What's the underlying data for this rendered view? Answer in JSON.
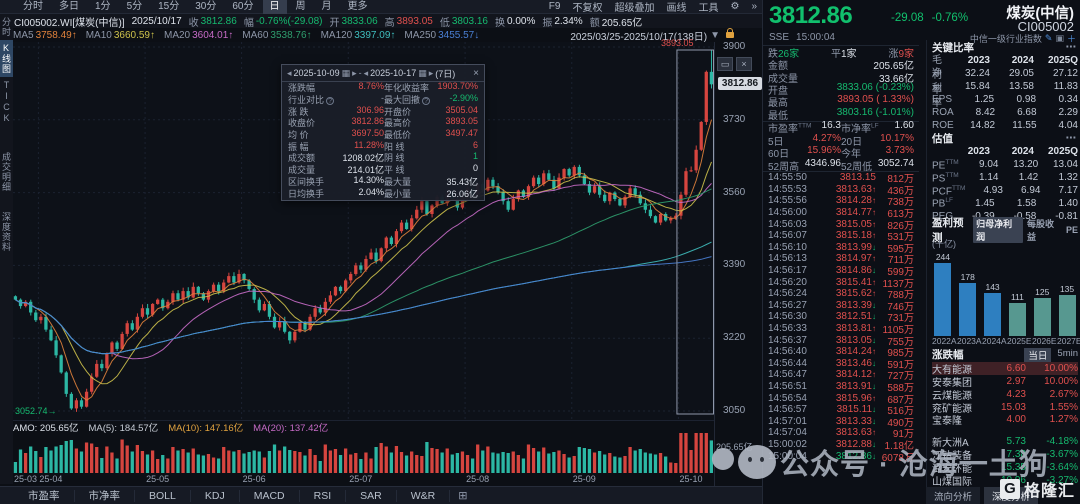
{
  "toolbar": {
    "tabs": [
      "分时",
      "多日",
      "1分",
      "5分",
      "15分",
      "30分",
      "60分",
      "日",
      "周",
      "月",
      "更多"
    ],
    "selected_tab": "日",
    "tools": [
      "F9",
      "不复权",
      "超级叠加",
      "画线",
      "工具"
    ],
    "gear_icon": "⚙",
    "more_icon": "»"
  },
  "info_bar": {
    "code_name": "CI005002.WI[煤炭(中信)]",
    "date": "2025/10/17",
    "fields": [
      {
        "label": "收",
        "value": "3812.86",
        "tone": "green"
      },
      {
        "label": "幅",
        "value": "-0.76%(-29.08)",
        "tone": "green"
      },
      {
        "label": "开",
        "value": "3833.06",
        "tone": "green"
      },
      {
        "label": "高",
        "value": "3893.05",
        "tone": "red"
      },
      {
        "label": "低",
        "value": "3803.16",
        "tone": "green"
      },
      {
        "label": "换",
        "value": "0.00%",
        "tone": "white"
      },
      {
        "label": "振",
        "value": "2.34%",
        "tone": "white"
      },
      {
        "label": "额",
        "value": "205.65亿",
        "tone": "white"
      }
    ]
  },
  "ma_bar": {
    "items": [
      {
        "label": "MA5",
        "value": "3758.49",
        "arrow": "↑",
        "color": "#e0823c"
      },
      {
        "label": "MA10",
        "value": "3660.59",
        "arrow": "↑",
        "color": "#cdc14b"
      },
      {
        "label": "MA20",
        "value": "3604.01",
        "arrow": "↑",
        "color": "#c66bc6"
      },
      {
        "label": "MA60",
        "value": "3538.76",
        "arrow": "↑",
        "color": "#2f9e6e"
      },
      {
        "label": "MA120",
        "value": "3397.09",
        "arrow": "↑",
        "color": "#3fbdbd"
      },
      {
        "label": "MA250",
        "value": "3455.57",
        "arrow": "↓",
        "color": "#4a7fd4"
      }
    ],
    "range": "2025/03/25-2025/10/17(138日)",
    "range_caret": "▼"
  },
  "sidebar": {
    "items": [
      {
        "label": "分时",
        "selected": false
      },
      {
        "label": "K线图",
        "selected": true
      },
      {
        "label": "TICK",
        "selected": false
      },
      {
        "label": "成交明细",
        "selected": false
      },
      {
        "label": "深度资料",
        "selected": false
      }
    ]
  },
  "chart": {
    "y_max": 3900,
    "y_min": 3050,
    "y_labels": [
      3900,
      3730,
      3560,
      3390,
      3220,
      3050
    ],
    "last_price_badge": "3812.86",
    "high_label": "3893.05",
    "low_label": "3052.74→",
    "sel_start": 131,
    "month_marks": [
      {
        "label": "25-03",
        "i": 0
      },
      {
        "label": "25-04",
        "i": 5
      },
      {
        "label": "25-05",
        "i": 26
      },
      {
        "label": "25-06",
        "i": 45
      },
      {
        "label": "25-07",
        "i": 66
      },
      {
        "label": "25-08",
        "i": 89
      },
      {
        "label": "25-09",
        "i": 110
      },
      {
        "label": "25-10",
        "i": 131
      }
    ],
    "closes": [
      3310,
      3295,
      3305,
      3280,
      3262,
      3270,
      3240,
      3215,
      3180,
      3140,
      3090,
      3056,
      3075,
      3060,
      3095,
      3130,
      3160,
      3150,
      3185,
      3210,
      3195,
      3230,
      3255,
      3240,
      3270,
      3290,
      3275,
      3300,
      3310,
      3290,
      3305,
      3325,
      3310,
      3330,
      3315,
      3340,
      3325,
      3310,
      3330,
      3345,
      3330,
      3350,
      3365,
      3350,
      3370,
      3355,
      3335,
      3310,
      3285,
      3300,
      3270,
      3245,
      3260,
      3235,
      3215,
      3235,
      3255,
      3240,
      3270,
      3290,
      3280,
      3305,
      3320,
      3340,
      3330,
      3355,
      3370,
      3390,
      3380,
      3405,
      3420,
      3400,
      3430,
      3455,
      3440,
      3470,
      3490,
      3475,
      3500,
      3520,
      3540,
      3510,
      3530,
      3550,
      3535,
      3560,
      3545,
      3525,
      3550,
      3570,
      3555,
      3580,
      3565,
      3590,
      3575,
      3560,
      3540,
      3520,
      3545,
      3565,
      3550,
      3575,
      3595,
      3580,
      3605,
      3590,
      3570,
      3595,
      3615,
      3600,
      3620,
      3600,
      3580,
      3560,
      3575,
      3555,
      3540,
      3560,
      3545,
      3530,
      3550,
      3570,
      3555,
      3535,
      3520,
      3505,
      3490,
      3510,
      3495,
      3500,
      3506,
      3555,
      3610,
      3612,
      3660,
      3725,
      3842,
      3812.86
    ],
    "tooltip": {
      "from": "2025-10-09",
      "to": "2025-10-17",
      "days": "(7日)",
      "rows": [
        {
          "l1": "涨跌幅",
          "q1": false,
          "v1": "8.76%",
          "t1": "red",
          "l2": "年化收益率",
          "q2": false,
          "v2": "1903.70%",
          "t2": "red"
        },
        {
          "l1": "行业对比",
          "q1": true,
          "v1": "-",
          "t1": "dim",
          "l2": "最大回撤",
          "q2": true,
          "v2": "-2.90%",
          "t2": "green"
        },
        {
          "l1": "涨 跌",
          "q1": false,
          "v1": "306.96",
          "t1": "red",
          "l2": "开盘价",
          "q2": false,
          "v2": "3505.04",
          "t2": "red"
        },
        {
          "l1": "收盘价",
          "q1": false,
          "v1": "3812.86",
          "t1": "red",
          "l2": "最高价",
          "q2": false,
          "v2": "3893.05",
          "t2": "red"
        },
        {
          "l1": "均 价",
          "q1": false,
          "v1": "3697.50",
          "t1": "red",
          "l2": "最低价",
          "q2": false,
          "v2": "3497.47",
          "t2": "red"
        },
        {
          "l1": "振 幅",
          "q1": false,
          "v1": "11.28%",
          "t1": "red",
          "l2": "阳 线",
          "q2": false,
          "v2": "6",
          "t2": "red"
        },
        {
          "l1": "成交额",
          "q1": false,
          "v1": "1208.02亿",
          "t1": "white",
          "l2": "阴 线",
          "q2": false,
          "v2": "1",
          "t2": "green"
        },
        {
          "l1": "成交量",
          "q1": false,
          "v1": "214.01亿",
          "t1": "white",
          "l2": "平 线",
          "q2": false,
          "v2": "0",
          "t2": "white"
        },
        {
          "l1": "区间换手",
          "q1": false,
          "v1": "14.30%",
          "t1": "white",
          "l2": "最大量",
          "q2": false,
          "v2": "35.43亿",
          "t2": "white"
        },
        {
          "l1": "日均换手",
          "q1": false,
          "v1": "2.04%",
          "t1": "white",
          "l2": "最小量",
          "q2": false,
          "v2": "26.06亿",
          "t2": "white"
        }
      ]
    }
  },
  "volume_pane": {
    "amo": "AMO: 205.65亿",
    "ma5": "MA(5): 184.57亿",
    "ma10": "MA(10): 147.16亿",
    "ma20": "MA(20): 137.42亿",
    "scale_label": "205.65亿"
  },
  "bottom_bar": {
    "tabs": [
      "市盈率",
      "市净率",
      "BOLL",
      "KDJ",
      "MACD",
      "RSI",
      "SAR",
      "W&R"
    ],
    "add_icon": "⊞"
  },
  "panel": {
    "price": "3812.86",
    "change": "-29.08",
    "change_pct": "-0.76%",
    "name": "煤炭(中信)",
    "code": "CI005002",
    "exchange": "SSE",
    "time": "15:00:04",
    "index_label": "中信一级行业指数",
    "breadth": {
      "down_label": "跌",
      "down": "26家",
      "flat_label": "平",
      "flat": "1家",
      "up_label": "涨",
      "up": "9家"
    },
    "quote_rows": [
      {
        "cells": [
          {
            "l": "金额",
            "v": "205.65亿",
            "t": "white"
          }
        ]
      },
      {
        "cells": [
          {
            "l": "成交量",
            "v": "33.66亿",
            "t": "white"
          }
        ]
      },
      {
        "cells": [
          {
            "l": "开盘",
            "v": "3833.06 (-0.23%)",
            "t": "green"
          }
        ]
      },
      {
        "cells": [
          {
            "l": "最高",
            "v": "3893.05 ( 1.33%)",
            "t": "red"
          }
        ]
      },
      {
        "cells": [
          {
            "l": "最低",
            "v": "3803.16 (-1.01%)",
            "t": "green"
          }
        ],
        "sep_below": true
      },
      {
        "cells": [
          {
            "l": "市盈率",
            "sup": "TTM",
            "v": "16.3",
            "t": "white"
          },
          {
            "l": "市净率",
            "sup": "LF",
            "v": "1.60",
            "t": "white"
          }
        ]
      },
      {
        "cells": [
          {
            "l": "5日",
            "v": "4.27%",
            "t": "red"
          },
          {
            "l": "20日",
            "v": "10.17%",
            "t": "red"
          }
        ]
      },
      {
        "cells": [
          {
            "l": "60日",
            "v": "15.96%",
            "t": "red"
          },
          {
            "l": "今年",
            "v": "3.73%",
            "t": "red"
          }
        ]
      },
      {
        "cells": [
          {
            "l": "52周高",
            "v": "4346.96",
            "t": "white"
          },
          {
            "l": "52周低",
            "v": "3052.74",
            "t": "white"
          }
        ],
        "sep_below": true
      }
    ],
    "ticks": [
      {
        "t": "14:55:50",
        "p": "3813.15",
        "d": "",
        "a": "812万",
        "pt": "red"
      },
      {
        "t": "14:55:53",
        "p": "3813.63",
        "d": "up",
        "a": "436万",
        "pt": "red"
      },
      {
        "t": "14:55:56",
        "p": "3814.28",
        "d": "up",
        "a": "738万",
        "pt": "red"
      },
      {
        "t": "14:56:00",
        "p": "3814.77",
        "d": "up",
        "a": "613万",
        "pt": "red"
      },
      {
        "t": "14:56:03",
        "p": "3815.05",
        "d": "up",
        "a": "826万",
        "pt": "red"
      },
      {
        "t": "14:56:07",
        "p": "3815.18",
        "d": "up",
        "a": "531万",
        "pt": "red"
      },
      {
        "t": "14:56:10",
        "p": "3813.99",
        "d": "down",
        "a": "595万",
        "pt": "red"
      },
      {
        "t": "14:56:13",
        "p": "3814.97",
        "d": "up",
        "a": "711万",
        "pt": "red"
      },
      {
        "t": "14:56:17",
        "p": "3814.86",
        "d": "down",
        "a": "599万",
        "pt": "red"
      },
      {
        "t": "14:56:20",
        "p": "3815.41",
        "d": "up",
        "a": "1137万",
        "pt": "red"
      },
      {
        "t": "14:56:24",
        "p": "3815.62",
        "d": "up",
        "a": "788万",
        "pt": "red"
      },
      {
        "t": "14:56:27",
        "p": "3813.39",
        "d": "down",
        "a": "746万",
        "pt": "red"
      },
      {
        "t": "14:56:30",
        "p": "3812.51",
        "d": "down",
        "a": "731万",
        "pt": "red"
      },
      {
        "t": "14:56:33",
        "p": "3813.81",
        "d": "up",
        "a": "1105万",
        "pt": "red"
      },
      {
        "t": "14:56:37",
        "p": "3813.05",
        "d": "down",
        "a": "755万",
        "pt": "red"
      },
      {
        "t": "14:56:40",
        "p": "3814.24",
        "d": "up",
        "a": "985万",
        "pt": "red"
      },
      {
        "t": "14:56:44",
        "p": "3813.46",
        "d": "down",
        "a": "591万",
        "pt": "red"
      },
      {
        "t": "14:56:47",
        "p": "3814.12",
        "d": "up",
        "a": "727万",
        "pt": "red"
      },
      {
        "t": "14:56:51",
        "p": "3813.91",
        "d": "down",
        "a": "588万",
        "pt": "red"
      },
      {
        "t": "14:56:54",
        "p": "3815.96",
        "d": "up",
        "a": "687万",
        "pt": "red"
      },
      {
        "t": "14:56:57",
        "p": "3815.11",
        "d": "down",
        "a": "516万",
        "pt": "red"
      },
      {
        "t": "14:57:01",
        "p": "3813.33",
        "d": "down",
        "a": "490万",
        "pt": "red"
      },
      {
        "t": "14:57:04",
        "p": "3813.63",
        "d": "up",
        "a": "91万",
        "pt": "red"
      },
      {
        "t": "15:00:02",
        "p": "3812.88",
        "d": "down",
        "a": "1.18亿",
        "pt": "red"
      },
      {
        "t": "15:00:04",
        "p": "3812.86",
        "d": "down",
        "a": "6078万",
        "pt": "green"
      }
    ],
    "key_ratios": {
      "title": "关键比率",
      "menu": "⋯",
      "headers": [
        "2023",
        "2024",
        "2025Q"
      ],
      "rows": [
        {
          "name": "毛利率",
          "vals": [
            "32.24",
            "29.05",
            "27.12"
          ]
        },
        {
          "name": "净利率",
          "vals": [
            "15.84",
            "13.58",
            "11.83"
          ]
        },
        {
          "name": "EPS",
          "vals": [
            "1.25",
            "0.98",
            "0.34"
          ]
        },
        {
          "name": "ROA",
          "vals": [
            "8.42",
            "6.68",
            "2.29"
          ]
        },
        {
          "name": "ROE",
          "vals": [
            "14.82",
            "11.55",
            "4.04"
          ]
        }
      ]
    },
    "valuation": {
      "title": "估值",
      "menu": "⋯",
      "headers": [
        "2023",
        "2024",
        "2025Q"
      ],
      "rows": [
        {
          "name": "PE",
          "sup": "TTM",
          "vals": [
            "9.04",
            "13.20",
            "13.04"
          ]
        },
        {
          "name": "PS",
          "sup": "TTM",
          "vals": [
            "1.14",
            "1.42",
            "1.32"
          ]
        },
        {
          "name": "PCF",
          "sup": "TTM",
          "vals": [
            "4.93",
            "6.94",
            "7.17"
          ]
        },
        {
          "name": "PB",
          "sup": "LF",
          "vals": [
            "1.45",
            "1.58",
            "1.40"
          ]
        },
        {
          "name": "PEG",
          "sup": "",
          "vals": [
            "-0.39",
            "-0.58",
            "-0.81"
          ]
        }
      ]
    },
    "forecast": {
      "title": "盈利预测",
      "unit": "(十亿)",
      "toggles": [
        {
          "label": "归母净利润",
          "selected": true
        },
        {
          "label": "每股收益",
          "selected": false
        },
        {
          "label": "PE",
          "selected": false
        }
      ],
      "chart_data": {
        "type": "bar",
        "categories": [
          "2022A",
          "2023A",
          "2024A",
          "2025E",
          "2026E",
          "2027E"
        ],
        "values": [
          244,
          178,
          143,
          111,
          125,
          135
        ],
        "actual_count": 3,
        "actual_color": "#2e7fc0",
        "estimate_color": "#579890"
      }
    },
    "movers": {
      "title": "涨跌幅",
      "tabs": [
        {
          "label": "当日",
          "selected": true
        },
        {
          "label": "5min",
          "selected": false
        }
      ],
      "gainers": [
        {
          "name": "大有能源",
          "price": "6.60",
          "pct": "10.00%",
          "highlight": true
        },
        {
          "name": "安泰集团",
          "price": "2.97",
          "pct": "10.00%",
          "highlight": false
        },
        {
          "name": "云煤能源",
          "price": "4.23",
          "pct": "2.67%",
          "highlight": false
        },
        {
          "name": "兖矿能源",
          "price": "15.03",
          "pct": "1.55%",
          "highlight": false
        },
        {
          "name": "宝泰隆",
          "price": "4.00",
          "pct": "1.27%",
          "highlight": false
        }
      ],
      "losers": [
        {
          "name": "新大洲A",
          "price": "5.73",
          "pct": "-4.18%",
          "highlight": false
        },
        {
          "name": "江钻装备",
          "price": "7.38",
          "pct": "-3.67%",
          "highlight": false
        },
        {
          "name": "潞安环能",
          "price": "15.35",
          "pct": "-3.64%",
          "highlight": false
        },
        {
          "name": "山煤国际",
          "price": "10.96",
          "pct": "-3.27%",
          "highlight": false
        }
      ]
    },
    "panel_tabs": [
      {
        "label": "流向分析",
        "selected": false
      },
      {
        "label": "深度分析",
        "selected": true
      }
    ]
  },
  "watermark": {
    "text": "公众号 · 沧海一土狗"
  },
  "logo": {
    "g": "G",
    "text": "格隆汇"
  }
}
